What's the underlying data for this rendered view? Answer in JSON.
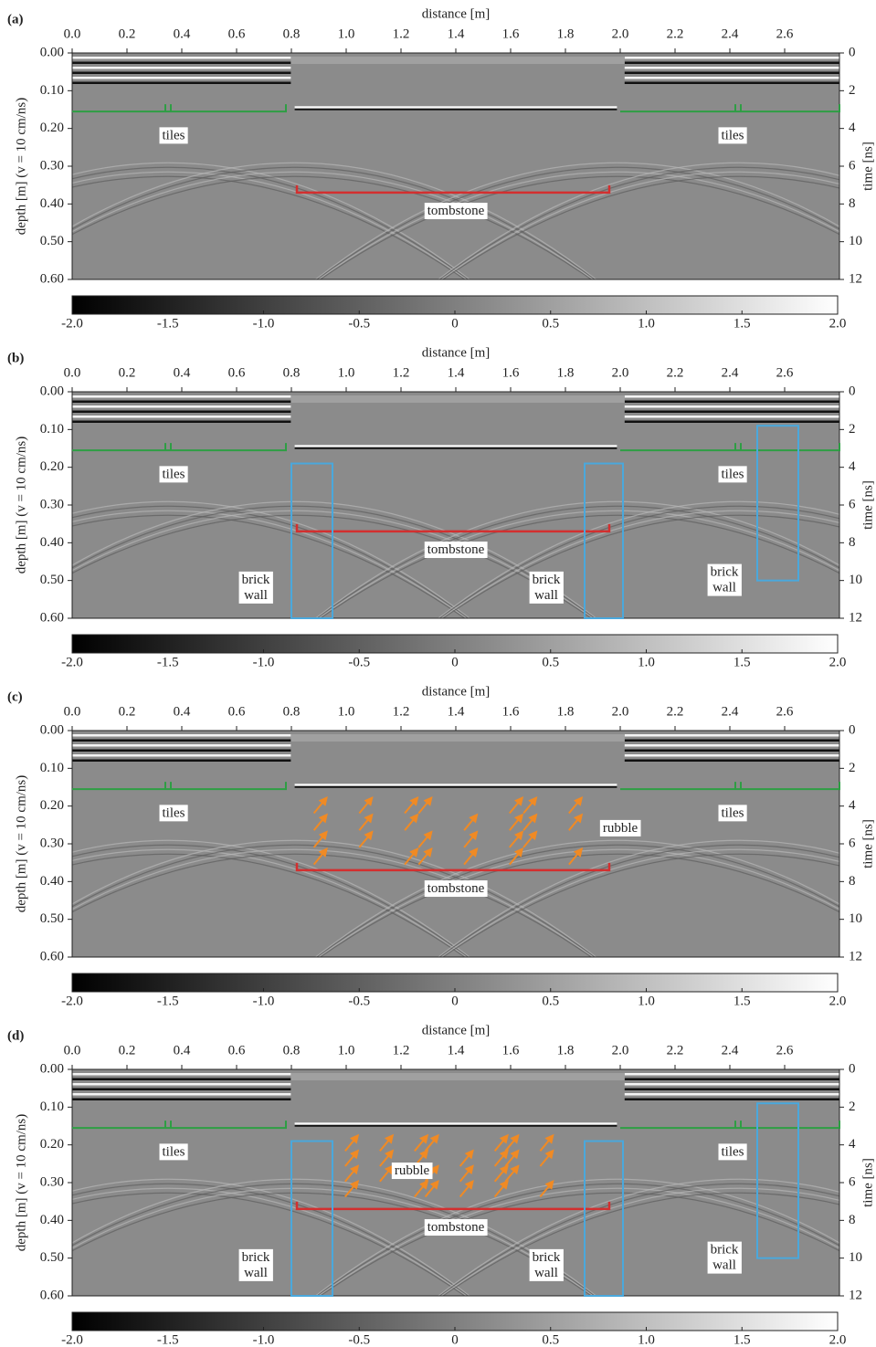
{
  "chart_data": [
    {
      "type": "radargram",
      "panel_label": "(a)",
      "xlabel": "distance [m]",
      "ylabel": "depth [m] (v = 10 cm/ns)",
      "y2label": "time [ns]",
      "xlim": [
        0,
        2.8
      ],
      "xticks": [
        {
          "value": 0,
          "label": "0.0"
        },
        0.2,
        0.4,
        0.6,
        0.8,
        {
          "value": 1,
          "label": "1.0"
        },
        1.2,
        1.4,
        1.6,
        1.8,
        {
          "value": 2,
          "label": "2.0"
        },
        2.2,
        2.4,
        2.6
      ],
      "ylim": [
        0.6,
        0
      ],
      "yticks": [
        {
          "value": 0,
          "label": "0.00"
        },
        {
          "value": 0.1,
          "label": "0.10"
        },
        {
          "value": 0.2,
          "label": "0.20"
        },
        {
          "value": 0.3,
          "label": "0.30"
        },
        {
          "value": 0.4,
          "label": "0.40"
        },
        {
          "value": 0.5,
          "label": "0.50"
        },
        {
          "value": 0.6,
          "label": "0.60"
        }
      ],
      "y2lim": [
        12,
        0
      ],
      "y2ticks": [
        0,
        2,
        4,
        6,
        8,
        10,
        12
      ],
      "colorbar": {
        "lim": [
          -2,
          2
        ],
        "ticks": [
          {
            "value": -2,
            "label": "-2.0"
          },
          -1.5,
          {
            "value": -1,
            "label": "-1.0"
          },
          -0.5,
          0,
          0.5,
          {
            "value": 1,
            "label": "1.0"
          },
          1.5,
          {
            "value": 2,
            "label": "2.0"
          }
        ]
      },
      "shapes": [
        {
          "kind": "step",
          "x": [
            0,
            0.78
          ],
          "bump": 0.35,
          "y": 0.155,
          "color": "#2e9e44"
        },
        {
          "kind": "step",
          "x": [
            2.0,
            2.8
          ],
          "bump": 2.43,
          "y": 0.155,
          "color": "#2e9e44"
        },
        {
          "kind": "bracket",
          "x": [
            0.82,
            1.96
          ],
          "y": 0.37,
          "color": "#d32f2f"
        }
      ],
      "annotations": [
        {
          "text": [
            "tiles"
          ],
          "x": 0.37,
          "y": 0.22,
          "color": "#2e8b3e"
        },
        {
          "text": [
            "tiles"
          ],
          "x": 2.41,
          "y": 0.22,
          "color": "#2e8b3e"
        },
        {
          "text": [
            "tombstone"
          ],
          "x": 1.4,
          "y": 0.42,
          "color": "#c62828"
        }
      ]
    },
    {
      "type": "radargram",
      "panel_label": "(b)",
      "xlabel": "distance [m]",
      "ylabel": "depth [m] (v = 10 cm/ns)",
      "y2label": "time [ns]",
      "xlim": [
        0,
        2.8
      ],
      "xticks": [
        {
          "value": 0,
          "label": "0.0"
        },
        0.2,
        0.4,
        0.6,
        0.8,
        {
          "value": 1,
          "label": "1.0"
        },
        1.2,
        1.4,
        1.6,
        1.8,
        {
          "value": 2,
          "label": "2.0"
        },
        2.2,
        2.4,
        2.6
      ],
      "ylim": [
        0.6,
        0
      ],
      "yticks": [
        {
          "value": 0,
          "label": "0.00"
        },
        {
          "value": 0.1,
          "label": "0.10"
        },
        {
          "value": 0.2,
          "label": "0.20"
        },
        {
          "value": 0.3,
          "label": "0.30"
        },
        {
          "value": 0.4,
          "label": "0.40"
        },
        {
          "value": 0.5,
          "label": "0.50"
        },
        {
          "value": 0.6,
          "label": "0.60"
        }
      ],
      "y2lim": [
        12,
        0
      ],
      "y2ticks": [
        0,
        2,
        4,
        6,
        8,
        10,
        12
      ],
      "colorbar": {
        "lim": [
          -2,
          2
        ],
        "ticks": [
          {
            "value": -2,
            "label": "-2.0"
          },
          -1.5,
          {
            "value": -1,
            "label": "-1.0"
          },
          -0.5,
          0,
          0.5,
          {
            "value": 1,
            "label": "1.0"
          },
          1.5,
          {
            "value": 2,
            "label": "2.0"
          }
        ]
      },
      "shapes": [
        {
          "kind": "step",
          "x": [
            0,
            0.78
          ],
          "bump": 0.35,
          "y": 0.155,
          "color": "#2e9e44"
        },
        {
          "kind": "step",
          "x": [
            2.0,
            2.8
          ],
          "bump": 2.43,
          "y": 0.155,
          "color": "#2e9e44"
        },
        {
          "kind": "bracket",
          "x": [
            0.82,
            1.96
          ],
          "y": 0.37,
          "color": "#d32f2f"
        },
        {
          "kind": "box",
          "x": [
            0.8,
            0.95
          ],
          "y": [
            0.19,
            0.6
          ],
          "color": "#4aa8dc"
        },
        {
          "kind": "box",
          "x": [
            1.87,
            2.01
          ],
          "y": [
            0.19,
            0.6
          ],
          "color": "#4aa8dc"
        },
        {
          "kind": "box",
          "x": [
            2.5,
            2.65
          ],
          "y": [
            0.09,
            0.5
          ],
          "color": "#4aa8dc"
        }
      ],
      "annotations": [
        {
          "text": [
            "tiles"
          ],
          "x": 0.37,
          "y": 0.22,
          "color": "#2e8b3e"
        },
        {
          "text": [
            "tiles"
          ],
          "x": 2.41,
          "y": 0.22,
          "color": "#2e8b3e"
        },
        {
          "text": [
            "tombstone"
          ],
          "x": 1.4,
          "y": 0.42,
          "color": "#c62828"
        },
        {
          "text": [
            "brick",
            "wall"
          ],
          "x": 0.67,
          "y": 0.52,
          "color": "#2a9fd8"
        },
        {
          "text": [
            "brick",
            "wall"
          ],
          "x": 1.73,
          "y": 0.52,
          "color": "#2a9fd8"
        },
        {
          "text": [
            "brick",
            "wall"
          ],
          "x": 2.38,
          "y": 0.5,
          "color": "#2a9fd8"
        }
      ]
    },
    {
      "type": "radargram",
      "panel_label": "(c)",
      "xlabel": "distance [m]",
      "ylabel": "depth [m] (v = 10 cm/ns)",
      "y2label": "time [ns]",
      "xlim": [
        0,
        2.8
      ],
      "xticks": [
        {
          "value": 0,
          "label": "0.0"
        },
        0.2,
        0.4,
        0.6,
        0.8,
        {
          "value": 1,
          "label": "1.0"
        },
        1.2,
        1.4,
        1.6,
        1.8,
        {
          "value": 2,
          "label": "2.0"
        },
        2.2,
        2.4,
        2.6
      ],
      "ylim": [
        0.6,
        0
      ],
      "yticks": [
        {
          "value": 0,
          "label": "0.00"
        },
        {
          "value": 0.1,
          "label": "0.10"
        },
        {
          "value": 0.2,
          "label": "0.20"
        },
        {
          "value": 0.3,
          "label": "0.30"
        },
        {
          "value": 0.4,
          "label": "0.40"
        },
        {
          "value": 0.5,
          "label": "0.50"
        },
        {
          "value": 0.6,
          "label": "0.60"
        }
      ],
      "y2lim": [
        12,
        0
      ],
      "y2ticks": [
        0,
        2,
        4,
        6,
        8,
        10,
        12
      ],
      "colorbar": {
        "lim": [
          -2,
          2
        ],
        "ticks": [
          {
            "value": -2,
            "label": "-2.0"
          },
          -1.5,
          {
            "value": -1,
            "label": "-1.0"
          },
          -0.5,
          0,
          0.5,
          {
            "value": 1,
            "label": "1.0"
          },
          1.5,
          {
            "value": 2,
            "label": "2.0"
          }
        ]
      },
      "shapes": [
        {
          "kind": "step",
          "x": [
            0,
            0.78
          ],
          "bump": 0.35,
          "y": 0.155,
          "color": "#2e9e44"
        },
        {
          "kind": "step",
          "x": [
            2.0,
            2.8
          ],
          "bump": 2.43,
          "y": 0.155,
          "color": "#2e9e44"
        },
        {
          "kind": "bracket",
          "x": [
            0.82,
            1.96
          ],
          "y": 0.37,
          "color": "#d32f2f"
        },
        {
          "kind": "arrows",
          "x": [
            0.88,
            1.9
          ],
          "y": [
            0.17,
            0.36
          ],
          "color": "#f08a24"
        }
      ],
      "annotations": [
        {
          "text": [
            "tiles"
          ],
          "x": 0.37,
          "y": 0.22,
          "color": "#2e8b3e"
        },
        {
          "text": [
            "tiles"
          ],
          "x": 2.41,
          "y": 0.22,
          "color": "#2e8b3e"
        },
        {
          "text": [
            "tombstone"
          ],
          "x": 1.4,
          "y": 0.42,
          "color": "#c62828"
        },
        {
          "text": [
            "rubble"
          ],
          "x": 2.0,
          "y": 0.26,
          "color": "#b5651d"
        }
      ]
    },
    {
      "type": "radargram",
      "panel_label": "(d)",
      "xlabel": "distance [m]",
      "ylabel": "depth [m] (v = 10 cm/ns)",
      "y2label": "time [ns]",
      "xlim": [
        0,
        2.8
      ],
      "xticks": [
        {
          "value": 0,
          "label": "0.0"
        },
        0.2,
        0.4,
        0.6,
        0.8,
        {
          "value": 1,
          "label": "1.0"
        },
        1.2,
        1.4,
        1.6,
        1.8,
        {
          "value": 2,
          "label": "2.0"
        },
        2.2,
        2.4,
        2.6
      ],
      "ylim": [
        0.6,
        0
      ],
      "yticks": [
        {
          "value": 0,
          "label": "0.00"
        },
        {
          "value": 0.1,
          "label": "0.10"
        },
        {
          "value": 0.2,
          "label": "0.20"
        },
        {
          "value": 0.3,
          "label": "0.30"
        },
        {
          "value": 0.4,
          "label": "0.40"
        },
        {
          "value": 0.5,
          "label": "0.50"
        },
        {
          "value": 0.6,
          "label": "0.60"
        }
      ],
      "y2lim": [
        12,
        0
      ],
      "y2ticks": [
        0,
        2,
        4,
        6,
        8,
        10,
        12
      ],
      "colorbar": {
        "lim": [
          -2,
          2
        ],
        "ticks": [
          {
            "value": -2,
            "label": "-2.0"
          },
          -1.5,
          {
            "value": -1,
            "label": "-1.0"
          },
          -0.5,
          0,
          0.5,
          {
            "value": 1,
            "label": "1.0"
          },
          1.5,
          {
            "value": 2,
            "label": "2.0"
          }
        ]
      },
      "shapes": [
        {
          "kind": "step",
          "x": [
            0,
            0.78
          ],
          "bump": 0.35,
          "y": 0.155,
          "color": "#2e9e44"
        },
        {
          "kind": "step",
          "x": [
            2.0,
            2.8
          ],
          "bump": 2.43,
          "y": 0.155,
          "color": "#2e9e44"
        },
        {
          "kind": "bracket",
          "x": [
            0.82,
            1.96
          ],
          "y": 0.37,
          "color": "#d32f2f"
        },
        {
          "kind": "box",
          "x": [
            0.8,
            0.95
          ],
          "y": [
            0.19,
            0.6
          ],
          "color": "#4aa8dc"
        },
        {
          "kind": "box",
          "x": [
            1.87,
            2.01
          ],
          "y": [
            0.19,
            0.6
          ],
          "color": "#4aa8dc"
        },
        {
          "kind": "box",
          "x": [
            2.5,
            2.65
          ],
          "y": [
            0.09,
            0.5
          ],
          "color": "#4aa8dc"
        },
        {
          "kind": "arrows",
          "x": [
            1.0,
            1.78
          ],
          "y": [
            0.17,
            0.34
          ],
          "color": "#f08a24"
        }
      ],
      "annotations": [
        {
          "text": [
            "tiles"
          ],
          "x": 0.37,
          "y": 0.22,
          "color": "#2e8b3e"
        },
        {
          "text": [
            "tiles"
          ],
          "x": 2.41,
          "y": 0.22,
          "color": "#2e8b3e"
        },
        {
          "text": [
            "tombstone"
          ],
          "x": 1.4,
          "y": 0.42,
          "color": "#c62828"
        },
        {
          "text": [
            "brick",
            "wall"
          ],
          "x": 0.67,
          "y": 0.52,
          "color": "#2a9fd8"
        },
        {
          "text": [
            "brick",
            "wall"
          ],
          "x": 1.73,
          "y": 0.52,
          "color": "#2a9fd8"
        },
        {
          "text": [
            "brick",
            "wall"
          ],
          "x": 2.38,
          "y": 0.5,
          "color": "#2a9fd8"
        },
        {
          "text": [
            "rubble"
          ],
          "x": 1.24,
          "y": 0.27,
          "color": "#b5651d"
        }
      ]
    }
  ]
}
